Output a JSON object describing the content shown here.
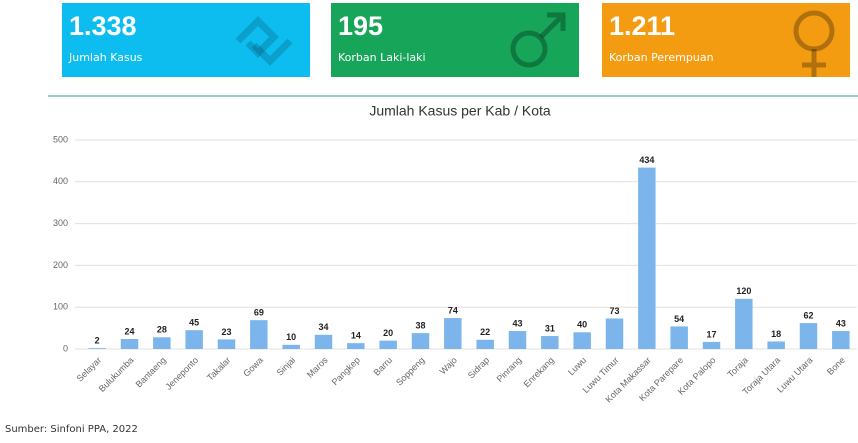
{
  "cards": [
    {
      "value": "1.338",
      "label": "Jumlah Kasus"
    },
    {
      "value": "195",
      "label": "Korban Laki-laki"
    },
    {
      "value": "1.211",
      "label": "Korban Perempuan"
    }
  ],
  "chart_data": {
    "type": "bar",
    "title": "Jumlah Kasus per Kab / Kota",
    "categories": [
      "Selayar",
      "Bulukumba",
      "Bantaeng",
      "Jeneponto",
      "Takalar",
      "Gowa",
      "Sinjai",
      "Maros",
      "Pangkep",
      "Barru",
      "Soppeng",
      "Wajo",
      "Sidrap",
      "Pinrang",
      "Enrekang",
      "Luwu",
      "Luwu Timur",
      "Kota Makassar",
      "Kota Parepare",
      "Kota Palopo",
      "Toraja",
      "Toraja Utara",
      "Luwu Utara",
      "Bone"
    ],
    "values": [
      2,
      24,
      28,
      45,
      23,
      69,
      10,
      34,
      14,
      20,
      38,
      74,
      22,
      43,
      31,
      40,
      73,
      434,
      54,
      17,
      120,
      18,
      62,
      43
    ],
    "color": "#7cb5ec",
    "ylim": [
      0,
      500
    ],
    "yticks": [
      0,
      100,
      200,
      300,
      400,
      500
    ],
    "grid": true
  },
  "source": "Sumber: Sinfoni PPA, 2022"
}
